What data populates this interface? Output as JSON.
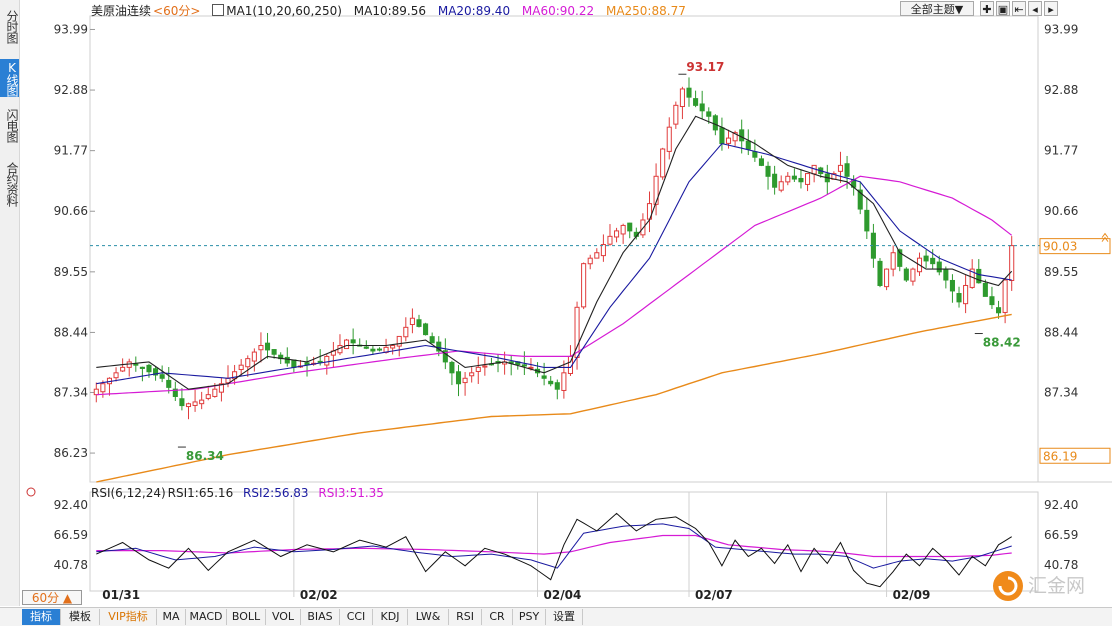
{
  "sidebar": {
    "tabs": [
      {
        "label": "分时图",
        "active": false
      },
      {
        "label": "K线图",
        "active": true
      },
      {
        "label": "闪电图",
        "active": false
      },
      {
        "label": "合约资料",
        "active": false
      }
    ]
  },
  "legend": {
    "symbol": "美原油连续",
    "period": "<60分>",
    "ma_label": "MA1(10,20,60,250)",
    "ma10": "MA10:89.56",
    "ma20": "MA20:89.40",
    "ma60": "MA60:90.22",
    "ma250": "MA250:88.77"
  },
  "toolbar": {
    "theme_button": "全部主题▼",
    "zoom_icons": [
      "crosshair-icon",
      "zoom-in-icon",
      "first-icon",
      "prev-icon",
      "next-icon"
    ]
  },
  "rsi_legend": {
    "label": "RSI(6,12,24)",
    "rsi1": "RSI1:65.16",
    "rsi2": "RSI2:56.83",
    "rsi3": "RSI3:51.35"
  },
  "colors": {
    "up": "#e03c3c",
    "down": "#2e9a2e",
    "ma10": "#222222",
    "ma20": "#1a1aa0",
    "ma60": "#d51bd5",
    "ma250": "#e88a1a",
    "current_line": "#2a8fa8",
    "label_hi": "#cc3333",
    "label_lo": "#3a9a3a"
  },
  "chart_data": {
    "type": "candlestick",
    "y_ticks": [
      "93.99",
      "92.88",
      "91.77",
      "90.66",
      "89.55",
      "88.44",
      "87.34",
      "86.23"
    ],
    "ylim": [
      85.7,
      94.2
    ],
    "current_price": "90.03",
    "ma250_label": "86.19",
    "high_label": "93.17",
    "low_label": "86.34",
    "recent_low_label": "88.42",
    "x_labels": [
      "01/31",
      "02/02",
      "02/04",
      "02/07",
      "02/09"
    ],
    "x_label_positions": [
      0,
      30,
      67,
      90,
      120
    ],
    "bar_count": 140,
    "anchors": [
      [
        0,
        87.4
      ],
      [
        5,
        87.9
      ],
      [
        10,
        87.6
      ],
      [
        13,
        87.1
      ],
      [
        16,
        87.2
      ],
      [
        20,
        87.6
      ],
      [
        25,
        88.2
      ],
      [
        30,
        87.8
      ],
      [
        34,
        87.9
      ],
      [
        38,
        88.3
      ],
      [
        42,
        88.1
      ],
      [
        45,
        88.2
      ],
      [
        48,
        88.7
      ],
      [
        52,
        88.1
      ],
      [
        55,
        87.5
      ],
      [
        58,
        87.8
      ],
      [
        62,
        87.9
      ],
      [
        66,
        87.8
      ],
      [
        70,
        87.4
      ],
      [
        72,
        88.0
      ],
      [
        73,
        88.9
      ],
      [
        74,
        89.7
      ],
      [
        76,
        89.9
      ],
      [
        78,
        90.2
      ],
      [
        80,
        90.4
      ],
      [
        82,
        90.2
      ],
      [
        84,
        90.8
      ],
      [
        86,
        91.8
      ],
      [
        88,
        92.6
      ],
      [
        89,
        92.9
      ],
      [
        91,
        92.6
      ],
      [
        93,
        92.4
      ],
      [
        95,
        91.9
      ],
      [
        97,
        92.1
      ],
      [
        99,
        91.8
      ],
      [
        101,
        91.5
      ],
      [
        103,
        91.1
      ],
      [
        105,
        91.3
      ],
      [
        107,
        91.2
      ],
      [
        109,
        91.5
      ],
      [
        111,
        91.2
      ],
      [
        113,
        91.5
      ],
      [
        115,
        91.1
      ],
      [
        117,
        90.3
      ],
      [
        119,
        89.3
      ],
      [
        121,
        89.9
      ],
      [
        123,
        89.4
      ],
      [
        125,
        89.8
      ],
      [
        127,
        89.7
      ],
      [
        129,
        89.4
      ],
      [
        131,
        89.0
      ],
      [
        133,
        89.6
      ],
      [
        135,
        89.1
      ],
      [
        137,
        88.8
      ],
      [
        138,
        89.4
      ],
      [
        139,
        90.03
      ]
    ],
    "ma10_anchors": [
      [
        0,
        87.8
      ],
      [
        8,
        87.9
      ],
      [
        14,
        87.4
      ],
      [
        20,
        87.5
      ],
      [
        26,
        88.0
      ],
      [
        32,
        87.9
      ],
      [
        38,
        88.2
      ],
      [
        44,
        88.2
      ],
      [
        50,
        88.3
      ],
      [
        56,
        87.8
      ],
      [
        62,
        87.9
      ],
      [
        68,
        87.7
      ],
      [
        72,
        87.9
      ],
      [
        76,
        89.0
      ],
      [
        80,
        89.9
      ],
      [
        84,
        90.5
      ],
      [
        88,
        91.8
      ],
      [
        91,
        92.4
      ],
      [
        95,
        92.2
      ],
      [
        100,
        91.9
      ],
      [
        105,
        91.5
      ],
      [
        110,
        91.3
      ],
      [
        114,
        91.2
      ],
      [
        118,
        90.8
      ],
      [
        122,
        89.9
      ],
      [
        126,
        89.6
      ],
      [
        130,
        89.6
      ],
      [
        134,
        89.4
      ],
      [
        137,
        89.3
      ],
      [
        139,
        89.56
      ]
    ],
    "ma20_anchors": [
      [
        0,
        87.5
      ],
      [
        10,
        87.7
      ],
      [
        20,
        87.6
      ],
      [
        30,
        87.8
      ],
      [
        40,
        88.0
      ],
      [
        50,
        88.2
      ],
      [
        60,
        88.0
      ],
      [
        68,
        87.8
      ],
      [
        72,
        87.8
      ],
      [
        78,
        88.9
      ],
      [
        84,
        89.8
      ],
      [
        90,
        91.2
      ],
      [
        95,
        91.9
      ],
      [
        102,
        91.7
      ],
      [
        110,
        91.4
      ],
      [
        116,
        91.2
      ],
      [
        122,
        90.3
      ],
      [
        128,
        89.8
      ],
      [
        134,
        89.5
      ],
      [
        139,
        89.4
      ]
    ],
    "ma60_anchors": [
      [
        0,
        87.3
      ],
      [
        15,
        87.4
      ],
      [
        30,
        87.7
      ],
      [
        45,
        87.95
      ],
      [
        55,
        88.1
      ],
      [
        65,
        88.0
      ],
      [
        72,
        88.0
      ],
      [
        80,
        88.6
      ],
      [
        90,
        89.5
      ],
      [
        100,
        90.4
      ],
      [
        110,
        90.9
      ],
      [
        116,
        91.3
      ],
      [
        122,
        91.2
      ],
      [
        130,
        90.9
      ],
      [
        136,
        90.5
      ],
      [
        139,
        90.22
      ]
    ],
    "ma250_anchors": [
      [
        0,
        85.7
      ],
      [
        20,
        86.2
      ],
      [
        40,
        86.6
      ],
      [
        60,
        86.9
      ],
      [
        72,
        86.95
      ],
      [
        85,
        87.3
      ],
      [
        95,
        87.7
      ],
      [
        110,
        88.05
      ],
      [
        125,
        88.45
      ],
      [
        139,
        88.77
      ]
    ],
    "rsi": {
      "ylim": [
        20,
        100
      ],
      "y_ticks": [
        "92.40",
        "66.59",
        "40.78"
      ],
      "rsi1_anchors": [
        [
          0,
          50
        ],
        [
          4,
          60
        ],
        [
          8,
          45
        ],
        [
          11,
          38
        ],
        [
          14,
          55
        ],
        [
          17,
          36
        ],
        [
          20,
          52
        ],
        [
          24,
          62
        ],
        [
          28,
          48
        ],
        [
          32,
          58
        ],
        [
          36,
          52
        ],
        [
          40,
          62
        ],
        [
          44,
          56
        ],
        [
          47,
          65
        ],
        [
          50,
          35
        ],
        [
          53,
          52
        ],
        [
          56,
          40
        ],
        [
          59,
          55
        ],
        [
          62,
          50
        ],
        [
          66,
          40
        ],
        [
          69,
          28
        ],
        [
          71,
          58
        ],
        [
          73,
          80
        ],
        [
          76,
          70
        ],
        [
          79,
          85
        ],
        [
          82,
          70
        ],
        [
          85,
          80
        ],
        [
          88,
          82
        ],
        [
          91,
          72
        ],
        [
          93,
          60
        ],
        [
          95,
          40
        ],
        [
          97,
          62
        ],
        [
          99,
          48
        ],
        [
          101,
          55
        ],
        [
          103,
          42
        ],
        [
          105,
          58
        ],
        [
          107,
          35
        ],
        [
          109,
          55
        ],
        [
          111,
          42
        ],
        [
          113,
          60
        ],
        [
          115,
          36
        ],
        [
          117,
          25
        ],
        [
          119,
          22
        ],
        [
          121,
          35
        ],
        [
          123,
          50
        ],
        [
          125,
          40
        ],
        [
          127,
          55
        ],
        [
          129,
          45
        ],
        [
          131,
          32
        ],
        [
          133,
          48
        ],
        [
          135,
          40
        ],
        [
          137,
          58
        ],
        [
          139,
          65
        ]
      ],
      "rsi2_anchors": [
        [
          0,
          52
        ],
        [
          6,
          55
        ],
        [
          12,
          45
        ],
        [
          18,
          48
        ],
        [
          24,
          56
        ],
        [
          30,
          52
        ],
        [
          36,
          54
        ],
        [
          42,
          57
        ],
        [
          48,
          52
        ],
        [
          54,
          48
        ],
        [
          60,
          50
        ],
        [
          66,
          45
        ],
        [
          70,
          38
        ],
        [
          74,
          68
        ],
        [
          80,
          74
        ],
        [
          86,
          76
        ],
        [
          90,
          72
        ],
        [
          94,
          56
        ],
        [
          98,
          54
        ],
        [
          102,
          52
        ],
        [
          106,
          50
        ],
        [
          110,
          50
        ],
        [
          114,
          48
        ],
        [
          118,
          38
        ],
        [
          122,
          44
        ],
        [
          126,
          46
        ],
        [
          130,
          44
        ],
        [
          134,
          48
        ],
        [
          139,
          57
        ]
      ],
      "rsi3_anchors": [
        [
          0,
          53
        ],
        [
          10,
          53
        ],
        [
          20,
          51
        ],
        [
          30,
          54
        ],
        [
          40,
          55
        ],
        [
          50,
          54
        ],
        [
          60,
          52
        ],
        [
          68,
          50
        ],
        [
          72,
          52
        ],
        [
          78,
          60
        ],
        [
          86,
          66
        ],
        [
          91,
          66
        ],
        [
          96,
          58
        ],
        [
          104,
          54
        ],
        [
          112,
          52
        ],
        [
          118,
          48
        ],
        [
          124,
          48
        ],
        [
          130,
          48
        ],
        [
          136,
          49
        ],
        [
          139,
          51
        ]
      ]
    }
  }
}
